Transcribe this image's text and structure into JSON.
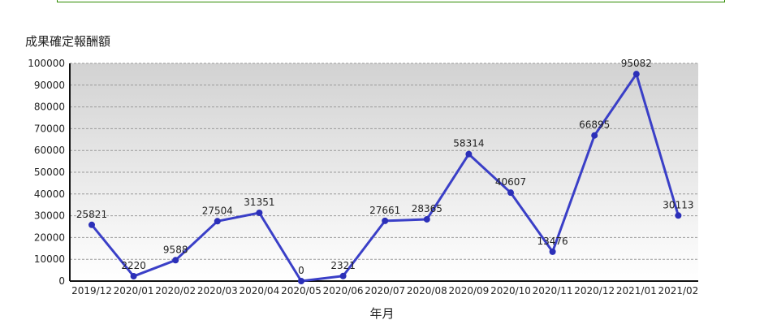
{
  "chart_data": {
    "type": "line",
    "title": "",
    "xlabel": "年月",
    "ylabel": "成果確定報酬額",
    "categories": [
      "2019/12",
      "2020/01",
      "2020/02",
      "2020/03",
      "2020/04",
      "2020/05",
      "2020/06",
      "2020/07",
      "2020/08",
      "2020/09",
      "2020/10",
      "2020/11",
      "2020/12",
      "2021/01",
      "2021/02"
    ],
    "values": [
      25821,
      2220,
      9588,
      27504,
      31351,
      0,
      2321,
      27661,
      28365,
      58314,
      40607,
      13476,
      66895,
      95082,
      30113
    ],
    "ylim": [
      0,
      100000
    ],
    "yticks": [
      0,
      10000,
      20000,
      30000,
      40000,
      50000,
      60000,
      70000,
      80000,
      90000,
      100000
    ],
    "grid": true,
    "legend": "none",
    "colors": {
      "line": "#3a3fc7",
      "point": "#2b2fb8",
      "grid": "#9a9a9a"
    }
  }
}
